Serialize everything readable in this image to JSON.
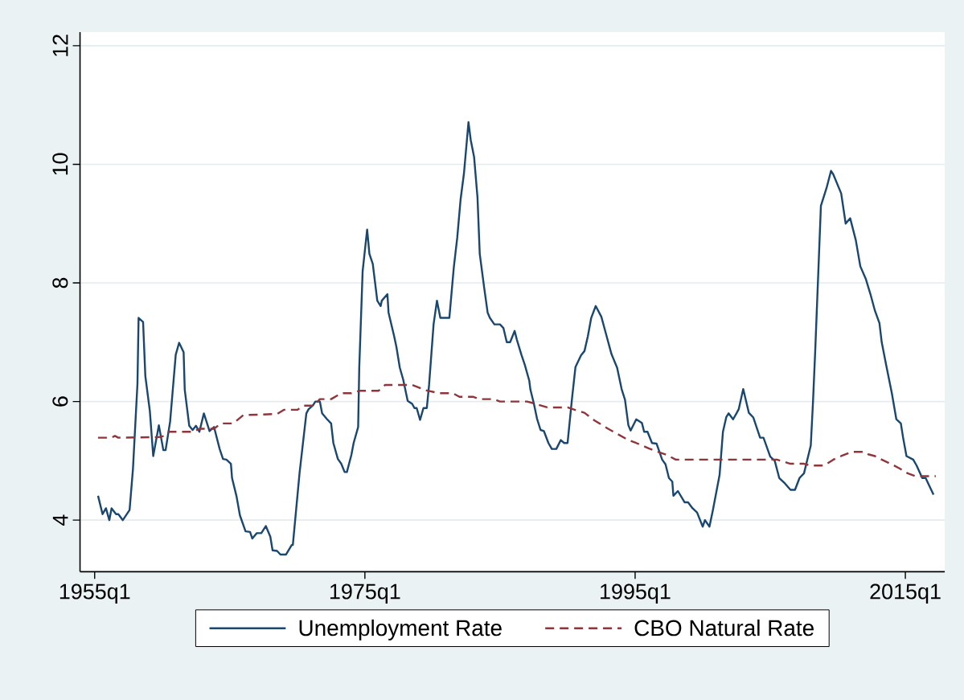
{
  "chart_data": {
    "type": "line",
    "xlim": [
      "1953-12",
      "2017-12"
    ],
    "ylim": [
      3.13,
      12.23
    ],
    "xticks": [
      {
        "value": "1955-01",
        "label": "1955q1"
      },
      {
        "value": "1975-01",
        "label": "1975q1"
      },
      {
        "value": "1995-01",
        "label": "1995q1"
      },
      {
        "value": "2015-01",
        "label": "2015q1"
      }
    ],
    "yticks": [
      4,
      6,
      8,
      10,
      12
    ],
    "grid": "y",
    "legend": "bottom",
    "marker": "none",
    "series": [
      {
        "name": "Unemployment Rate",
        "color": "#1a476f",
        "line_style": "solid",
        "x": [
          "1955-04",
          "1955-08",
          "1955-11",
          "1956-02",
          "1956-04",
          "1956-08",
          "1956-10",
          "1957-02",
          "1957-08",
          "1957-11",
          "1958-03",
          "1958-04",
          "1958-08",
          "1958-10",
          "1959-02",
          "1959-05",
          "1959-10",
          "1960-02",
          "1960-04",
          "1960-08",
          "1961-01",
          "1961-04",
          "1961-08",
          "1961-09",
          "1962-01",
          "1962-04",
          "1962-07",
          "1962-10",
          "1963-02",
          "1963-07",
          "1963-11",
          "1964-04",
          "1964-07",
          "1964-10",
          "1965-02",
          "1965-03",
          "1965-07",
          "1965-10",
          "1966-03",
          "1966-07",
          "1966-09",
          "1967-01",
          "1967-05",
          "1967-09",
          "1968-01",
          "1968-03",
          "1968-07",
          "1968-10",
          "1969-03",
          "1969-08",
          "1969-09",
          "1970-03",
          "1970-09",
          "1970-11",
          "1971-03",
          "1971-05",
          "1971-09",
          "1971-11",
          "1972-03",
          "1972-07",
          "1972-09",
          "1973-01",
          "1973-04",
          "1973-07",
          "1973-09",
          "1974-01",
          "1974-03",
          "1974-07",
          "1974-08",
          "1974-11",
          "1975-03",
          "1975-05",
          "1975-08",
          "1975-12",
          "1976-03",
          "1976-04",
          "1976-09",
          "1976-10",
          "1977-03",
          "1977-05",
          "1977-08",
          "1977-11",
          "1978-03",
          "1978-07",
          "1978-09",
          "1978-11",
          "1979-02",
          "1979-05",
          "1979-08",
          "1979-10",
          "1980-02",
          "1980-05",
          "1980-08",
          "1981-04",
          "1981-08",
          "1981-11",
          "1982-02",
          "1982-05",
          "1982-09",
          "1982-11",
          "1983-02",
          "1983-05",
          "1983-07",
          "1983-11",
          "1984-02",
          "1984-04",
          "1984-08",
          "1985-01",
          "1985-04",
          "1985-07",
          "1985-10",
          "1986-02",
          "1986-04",
          "1986-08",
          "1986-11",
          "1987-03",
          "1987-04",
          "1987-07",
          "1987-10",
          "1988-01",
          "1988-04",
          "1988-08",
          "1988-11",
          "1989-03",
          "1989-07",
          "1989-10",
          "1990-01",
          "1990-05",
          "1990-08",
          "1991-01",
          "1991-04",
          "1991-07",
          "1991-10",
          "1992-02",
          "1992-07",
          "1992-11",
          "1993-04",
          "1993-09",
          "1994-01",
          "1994-04",
          "1994-07",
          "1994-09",
          "1995-02",
          "1995-07",
          "1995-09",
          "1995-12",
          "1996-04",
          "1996-08",
          "1997-01",
          "1997-04",
          "1997-07",
          "1997-10",
          "1997-11",
          "1998-03",
          "1998-09",
          "1998-12",
          "1999-04",
          "1999-08",
          "2000-01",
          "2000-03",
          "2000-07",
          "2000-10",
          "2001-04",
          "2001-07",
          "2001-10",
          "2001-12",
          "2002-04",
          "2002-07",
          "2002-09",
          "2003-01",
          "2003-06",
          "2003-10",
          "2004-04",
          "2004-07",
          "2005-01",
          "2005-05",
          "2005-09",
          "2006-02",
          "2006-07",
          "2006-11",
          "2007-03",
          "2007-07",
          "2008-01",
          "2008-03",
          "2008-05",
          "2008-10",
          "2009-03",
          "2009-07",
          "2009-09",
          "2010-04",
          "2010-08",
          "2010-12",
          "2011-05",
          "2011-09",
          "2012-02",
          "2012-06",
          "2012-10",
          "2013-02",
          "2013-04",
          "2013-08",
          "2014-01",
          "2014-05",
          "2014-09",
          "2014-11",
          "2015-02",
          "2015-08",
          "2015-11",
          "2016-04",
          "2016-07",
          "2017-02"
        ],
        "values": [
          4.41,
          4.1,
          4.2,
          4.0,
          4.2,
          4.1,
          4.1,
          4.0,
          4.17,
          4.86,
          6.3,
          7.41,
          7.34,
          6.43,
          5.84,
          5.08,
          5.6,
          5.18,
          5.18,
          5.66,
          6.79,
          6.99,
          6.83,
          6.2,
          5.59,
          5.52,
          5.59,
          5.49,
          5.8,
          5.5,
          5.57,
          5.2,
          5.03,
          5.02,
          4.95,
          4.71,
          4.4,
          4.08,
          3.81,
          3.8,
          3.69,
          3.78,
          3.78,
          3.9,
          3.72,
          3.49,
          3.48,
          3.42,
          3.42,
          3.58,
          3.58,
          4.8,
          5.8,
          5.87,
          5.94,
          6.0,
          6.0,
          5.8,
          5.71,
          5.63,
          5.3,
          5.03,
          4.95,
          4.81,
          4.81,
          5.1,
          5.3,
          5.57,
          6.58,
          8.2,
          8.9,
          8.49,
          8.32,
          7.7,
          7.61,
          7.7,
          7.81,
          7.5,
          7.1,
          6.92,
          6.57,
          6.37,
          6.01,
          5.96,
          5.89,
          5.89,
          5.69,
          5.89,
          5.89,
          6.28,
          7.3,
          7.7,
          7.41,
          7.41,
          8.27,
          8.76,
          9.41,
          9.85,
          10.71,
          10.41,
          10.12,
          9.44,
          8.49,
          7.91,
          7.5,
          7.41,
          7.3,
          7.3,
          7.24,
          7.0,
          7.0,
          7.19,
          7.04,
          6.79,
          6.62,
          6.35,
          6.2,
          5.97,
          5.7,
          5.52,
          5.5,
          5.3,
          5.2,
          5.2,
          5.35,
          5.3,
          5.3,
          6.06,
          6.58,
          6.78,
          6.85,
          7.1,
          7.41,
          7.61,
          7.43,
          7.15,
          6.8,
          6.57,
          6.21,
          6.03,
          5.6,
          5.51,
          5.7,
          5.64,
          5.49,
          5.49,
          5.3,
          5.29,
          5.02,
          4.94,
          4.71,
          4.65,
          4.41,
          4.49,
          4.3,
          4.3,
          4.2,
          4.13,
          3.89,
          4.0,
          3.89,
          4.16,
          4.76,
          5.49,
          5.74,
          5.8,
          5.7,
          5.8,
          5.87,
          6.21,
          5.81,
          5.73,
          5.39,
          5.39,
          5.07,
          5.0,
          4.71,
          4.62,
          4.51,
          4.51,
          4.71,
          4.79,
          5.26,
          6.0,
          6.88,
          9.3,
          9.6,
          9.89,
          9.83,
          9.51,
          9.0,
          9.09,
          8.72,
          8.28,
          8.06,
          7.81,
          7.53,
          7.32,
          7.0,
          6.61,
          6.14,
          5.7,
          5.63,
          5.39,
          5.08,
          5.02,
          4.92,
          4.71,
          4.71,
          4.43
        ]
      },
      {
        "name": "CBO Natural Rate",
        "color": "#90353b",
        "line_style": "dashed",
        "x": [
          "1955-04",
          "1956-04",
          "1956-07",
          "1956-10",
          "1959-10",
          "1960-03",
          "1960-07",
          "1962-04",
          "1962-10",
          "1963-11",
          "1964-05",
          "1965-04",
          "1966-01",
          "1968-07",
          "1969-01",
          "1970-01",
          "1970-07",
          "1971-04",
          "1971-09",
          "1972-07",
          "1973-04",
          "1974-01",
          "1974-08",
          "1976-01",
          "1976-07",
          "1978-07",
          "1979-07",
          "1980-07",
          "1981-07",
          "1982-01",
          "1983-01",
          "1983-07",
          "1984-07",
          "1985-01",
          "1987-01",
          "1987-07",
          "1988-07",
          "1990-01",
          "1990-09",
          "1991-04",
          "1992-01",
          "1993-01",
          "1994-07",
          "1995-02",
          "1996-01",
          "1996-08",
          "1997-05",
          "1998-01",
          "2005-07",
          "2006-07",
          "2007-07",
          "2008-01",
          "2009-01",
          "2009-09",
          "2010-04",
          "2011-01",
          "2012-01",
          "2012-04",
          "2012-10",
          "2013-04",
          "2014-02",
          "2014-08",
          "2015-03",
          "2015-10",
          "2017-04"
        ],
        "values": [
          5.39,
          5.39,
          5.42,
          5.39,
          5.4,
          5.42,
          5.49,
          5.49,
          5.54,
          5.54,
          5.63,
          5.63,
          5.77,
          5.79,
          5.86,
          5.86,
          5.93,
          5.93,
          6.04,
          6.04,
          6.14,
          6.14,
          6.18,
          6.18,
          6.28,
          6.28,
          6.19,
          6.14,
          6.14,
          6.08,
          6.08,
          6.04,
          6.04,
          6.0,
          6.0,
          5.97,
          5.9,
          5.9,
          5.85,
          5.81,
          5.68,
          5.54,
          5.35,
          5.3,
          5.21,
          5.16,
          5.1,
          5.02,
          5.02,
          4.95,
          4.95,
          4.92,
          4.92,
          5.02,
          5.08,
          5.15,
          5.15,
          5.11,
          5.08,
          5.02,
          4.93,
          4.87,
          4.79,
          4.74,
          4.74
        ]
      }
    ]
  }
}
